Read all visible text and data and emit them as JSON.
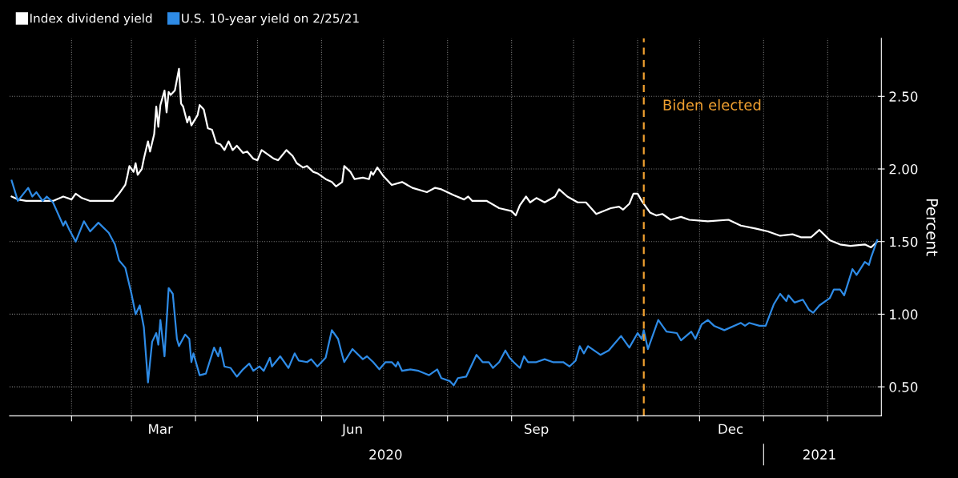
{
  "chart_data": {
    "type": "line",
    "ylabel": "Percent",
    "xlim": [
      "2020-01-02",
      "2021-02-27"
    ],
    "ylim": [
      0.3,
      2.9
    ],
    "xticks": [
      {
        "value": "2020-02-01",
        "label": null
      },
      {
        "value": "2020-03-01",
        "label": null
      },
      {
        "value": "2020-03-15",
        "label": "Mar"
      },
      {
        "value": "2020-04-01",
        "label": null
      },
      {
        "value": "2020-05-01",
        "label": null
      },
      {
        "value": "2020-06-01",
        "label": null
      },
      {
        "value": "2020-06-16",
        "label": "Jun"
      },
      {
        "value": "2020-07-01",
        "label": null
      },
      {
        "value": "2020-08-01",
        "label": null
      },
      {
        "value": "2020-09-01",
        "label": null
      },
      {
        "value": "2020-09-13",
        "label": "Sep"
      },
      {
        "value": "2020-10-01",
        "label": null
      },
      {
        "value": "2020-11-01",
        "label": null
      },
      {
        "value": "2020-12-01",
        "label": null
      },
      {
        "value": "2020-12-16",
        "label": "Dec"
      },
      {
        "value": "2021-01-01",
        "label": null
      },
      {
        "value": "2021-02-01",
        "label": null
      }
    ],
    "x2lim": [
      "2020-01-02",
      "2021-02-27"
    ],
    "x2ticks": [
      {
        "value": "2020-07-02",
        "label": "2020"
      },
      {
        "value": "2021-01-01",
        "label": null
      },
      {
        "value": "2021-01-28",
        "label": "2021"
      }
    ],
    "yticks": [
      {
        "value": 0.5,
        "label": "0.50"
      },
      {
        "value": 1.0,
        "label": "1.00"
      },
      {
        "value": 1.5,
        "label": "1.50"
      },
      {
        "value": 2.0,
        "label": "2.00"
      },
      {
        "value": 2.5,
        "label": "2.50"
      }
    ],
    "grid": true,
    "legend": "top left",
    "line_style": "solid",
    "ref_lines": [
      {
        "axis": "x",
        "value": "2020-11-04",
        "label": "Biden elected",
        "color": "#f0a030",
        "line_style": "dashed"
      }
    ],
    "series": [
      {
        "name": "Index dividend yield",
        "color": "#ffffff",
        "x": [
          "2020-01-03",
          "2020-01-06",
          "2020-01-10",
          "2020-01-16",
          "2020-01-23",
          "2020-01-28",
          "2020-02-01",
          "2020-02-03",
          "2020-02-06",
          "2020-02-10",
          "2020-02-16",
          "2020-02-21",
          "2020-02-24",
          "2020-02-27",
          "2020-02-28",
          "2020-02-29",
          "2020-03-02",
          "2020-03-03",
          "2020-03-04",
          "2020-03-06",
          "2020-03-07",
          "2020-03-09",
          "2020-03-10",
          "2020-03-12",
          "2020-03-13",
          "2020-03-14",
          "2020-03-15",
          "2020-03-17",
          "2020-03-18",
          "2020-03-19",
          "2020-03-20",
          "2020-03-22",
          "2020-03-24",
          "2020-03-25",
          "2020-03-26",
          "2020-03-28",
          "2020-03-29",
          "2020-03-30",
          "2020-04-02",
          "2020-04-03",
          "2020-04-05",
          "2020-04-07",
          "2020-04-09",
          "2020-04-11",
          "2020-04-13",
          "2020-04-15",
          "2020-04-17",
          "2020-04-19",
          "2020-04-21",
          "2020-04-24",
          "2020-04-26",
          "2020-04-29",
          "2020-05-01",
          "2020-05-03",
          "2020-05-06",
          "2020-05-09",
          "2020-05-11",
          "2020-05-15",
          "2020-05-18",
          "2020-05-20",
          "2020-05-23",
          "2020-05-25",
          "2020-05-28",
          "2020-05-30",
          "2020-06-03",
          "2020-06-06",
          "2020-06-08",
          "2020-06-11",
          "2020-06-12",
          "2020-06-15",
          "2020-06-17",
          "2020-06-21",
          "2020-06-24",
          "2020-06-25",
          "2020-06-26",
          "2020-06-28",
          "2020-07-01",
          "2020-07-05",
          "2020-07-10",
          "2020-07-15",
          "2020-07-22",
          "2020-07-26",
          "2020-07-29",
          "2020-08-04",
          "2020-08-09",
          "2020-08-11",
          "2020-08-13",
          "2020-08-20",
          "2020-08-26",
          "2020-09-01",
          "2020-09-03",
          "2020-09-05",
          "2020-09-08",
          "2020-09-10",
          "2020-09-13",
          "2020-09-17",
          "2020-09-22",
          "2020-09-24",
          "2020-09-28",
          "2020-10-03",
          "2020-10-07",
          "2020-10-12",
          "2020-10-19",
          "2020-10-23",
          "2020-10-25",
          "2020-10-28",
          "2020-10-30",
          "2020-11-01",
          "2020-11-03",
          "2020-11-07",
          "2020-11-10",
          "2020-11-13",
          "2020-11-17",
          "2020-11-22",
          "2020-11-26",
          "2020-12-05",
          "2020-12-15",
          "2020-12-21",
          "2020-12-28",
          "2021-01-03",
          "2021-01-09",
          "2021-01-15",
          "2021-01-19",
          "2021-01-24",
          "2021-01-28",
          "2021-02-02",
          "2021-02-07",
          "2021-02-12",
          "2021-02-19",
          "2021-02-22",
          "2021-02-25"
        ],
        "values": [
          1.81,
          1.79,
          1.78,
          1.78,
          1.78,
          1.81,
          1.79,
          1.83,
          1.8,
          1.78,
          1.78,
          1.78,
          1.83,
          1.89,
          1.95,
          2.02,
          1.98,
          2.04,
          1.96,
          2.0,
          2.07,
          2.19,
          2.12,
          2.24,
          2.43,
          2.29,
          2.44,
          2.54,
          2.39,
          2.53,
          2.51,
          2.54,
          2.69,
          2.45,
          2.43,
          2.32,
          2.36,
          2.3,
          2.37,
          2.44,
          2.41,
          2.28,
          2.27,
          2.18,
          2.17,
          2.13,
          2.19,
          2.13,
          2.16,
          2.11,
          2.12,
          2.07,
          2.06,
          2.13,
          2.1,
          2.07,
          2.06,
          2.13,
          2.09,
          2.04,
          2.01,
          2.02,
          1.98,
          1.97,
          1.93,
          1.91,
          1.88,
          1.91,
          2.02,
          1.98,
          1.93,
          1.94,
          1.93,
          1.98,
          1.96,
          2.01,
          1.95,
          1.89,
          1.91,
          1.87,
          1.84,
          1.87,
          1.86,
          1.82,
          1.79,
          1.81,
          1.78,
          1.78,
          1.73,
          1.71,
          1.68,
          1.75,
          1.81,
          1.77,
          1.8,
          1.77,
          1.81,
          1.86,
          1.81,
          1.77,
          1.77,
          1.69,
          1.73,
          1.74,
          1.72,
          1.76,
          1.83,
          1.83,
          1.78,
          1.7,
          1.68,
          1.69,
          1.65,
          1.67,
          1.65,
          1.64,
          1.65,
          1.61,
          1.59,
          1.57,
          1.54,
          1.55,
          1.53,
          1.53,
          1.58,
          1.51,
          1.48,
          1.47,
          1.48,
          1.46,
          1.5
        ]
      },
      {
        "name": "U.S. 10-year yield on 2/25/21",
        "color": "#2e8be6",
        "x": [
          "2020-01-03",
          "2020-01-06",
          "2020-01-11",
          "2020-01-13",
          "2020-01-15",
          "2020-01-18",
          "2020-01-20",
          "2020-01-23",
          "2020-01-28",
          "2020-01-29",
          "2020-01-31",
          "2020-02-03",
          "2020-02-07",
          "2020-02-10",
          "2020-02-14",
          "2020-02-19",
          "2020-02-22",
          "2020-02-24",
          "2020-02-27",
          "2020-03-01",
          "2020-03-03",
          "2020-03-05",
          "2020-03-07",
          "2020-03-09",
          "2020-03-11",
          "2020-03-13",
          "2020-03-14",
          "2020-03-15",
          "2020-03-17",
          "2020-03-19",
          "2020-03-21",
          "2020-03-23",
          "2020-03-24",
          "2020-03-27",
          "2020-03-29",
          "2020-03-30",
          "2020-03-31",
          "2020-04-03",
          "2020-04-06",
          "2020-04-08",
          "2020-04-10",
          "2020-04-12",
          "2020-04-13",
          "2020-04-15",
          "2020-04-18",
          "2020-04-21",
          "2020-04-24",
          "2020-04-27",
          "2020-04-29",
          "2020-05-02",
          "2020-05-04",
          "2020-05-07",
          "2020-05-08",
          "2020-05-12",
          "2020-05-16",
          "2020-05-19",
          "2020-05-21",
          "2020-05-25",
          "2020-05-27",
          "2020-05-30",
          "2020-06-03",
          "2020-06-06",
          "2020-06-09",
          "2020-06-11",
          "2020-06-12",
          "2020-06-16",
          "2020-06-21",
          "2020-06-23",
          "2020-06-26",
          "2020-06-29",
          "2020-07-02",
          "2020-07-05",
          "2020-07-07",
          "2020-07-08",
          "2020-07-10",
          "2020-07-14",
          "2020-07-18",
          "2020-07-23",
          "2020-07-27",
          "2020-07-29",
          "2020-08-02",
          "2020-08-04",
          "2020-08-06",
          "2020-08-10",
          "2020-08-15",
          "2020-08-18",
          "2020-08-21",
          "2020-08-23",
          "2020-08-26",
          "2020-08-29",
          "2020-08-31",
          "2020-09-02",
          "2020-09-05",
          "2020-09-07",
          "2020-09-09",
          "2020-09-13",
          "2020-09-17",
          "2020-09-21",
          "2020-09-26",
          "2020-09-29",
          "2020-10-02",
          "2020-10-04",
          "2020-10-06",
          "2020-10-08",
          "2020-10-14",
          "2020-10-18",
          "2020-10-24",
          "2020-10-28",
          "2020-11-01",
          "2020-11-03",
          "2020-11-04",
          "2020-11-06",
          "2020-11-11",
          "2020-11-15",
          "2020-11-20",
          "2020-11-22",
          "2020-11-27",
          "2020-11-29",
          "2020-12-02",
          "2020-12-05",
          "2020-12-08",
          "2020-12-13",
          "2020-12-21",
          "2020-12-23",
          "2020-12-25",
          "2020-12-30",
          "2021-01-02",
          "2021-01-06",
          "2021-01-09",
          "2021-01-12",
          "2021-01-13",
          "2021-01-16",
          "2021-01-20",
          "2021-01-23",
          "2021-01-25",
          "2021-01-28",
          "2021-02-02",
          "2021-02-04",
          "2021-02-07",
          "2021-02-09",
          "2021-02-13",
          "2021-02-15",
          "2021-02-19",
          "2021-02-21",
          "2021-02-22",
          "2021-02-25"
        ],
        "values": [
          1.92,
          1.78,
          1.87,
          1.81,
          1.84,
          1.78,
          1.81,
          1.77,
          1.61,
          1.64,
          1.58,
          1.5,
          1.64,
          1.57,
          1.63,
          1.56,
          1.48,
          1.37,
          1.32,
          1.14,
          1.0,
          1.06,
          0.91,
          0.53,
          0.81,
          0.87,
          0.79,
          0.96,
          0.71,
          1.18,
          1.14,
          0.83,
          0.78,
          0.86,
          0.83,
          0.67,
          0.73,
          0.58,
          0.59,
          0.68,
          0.77,
          0.71,
          0.77,
          0.64,
          0.63,
          0.57,
          0.62,
          0.66,
          0.61,
          0.64,
          0.61,
          0.7,
          0.64,
          0.71,
          0.63,
          0.73,
          0.68,
          0.67,
          0.69,
          0.64,
          0.7,
          0.89,
          0.83,
          0.72,
          0.67,
          0.76,
          0.69,
          0.71,
          0.67,
          0.62,
          0.67,
          0.67,
          0.64,
          0.67,
          0.61,
          0.62,
          0.61,
          0.58,
          0.62,
          0.56,
          0.54,
          0.51,
          0.56,
          0.57,
          0.72,
          0.67,
          0.67,
          0.63,
          0.67,
          0.75,
          0.7,
          0.67,
          0.63,
          0.71,
          0.67,
          0.67,
          0.69,
          0.67,
          0.67,
          0.64,
          0.68,
          0.78,
          0.73,
          0.78,
          0.72,
          0.75,
          0.85,
          0.77,
          0.87,
          0.83,
          0.89,
          0.76,
          0.96,
          0.88,
          0.87,
          0.82,
          0.88,
          0.83,
          0.93,
          0.96,
          0.92,
          0.89,
          0.94,
          0.92,
          0.94,
          0.92,
          0.92,
          1.07,
          1.14,
          1.09,
          1.13,
          1.08,
          1.1,
          1.03,
          1.01,
          1.06,
          1.11,
          1.17,
          1.17,
          1.13,
          1.31,
          1.27,
          1.36,
          1.34,
          1.39,
          1.51
        ]
      }
    ]
  }
}
